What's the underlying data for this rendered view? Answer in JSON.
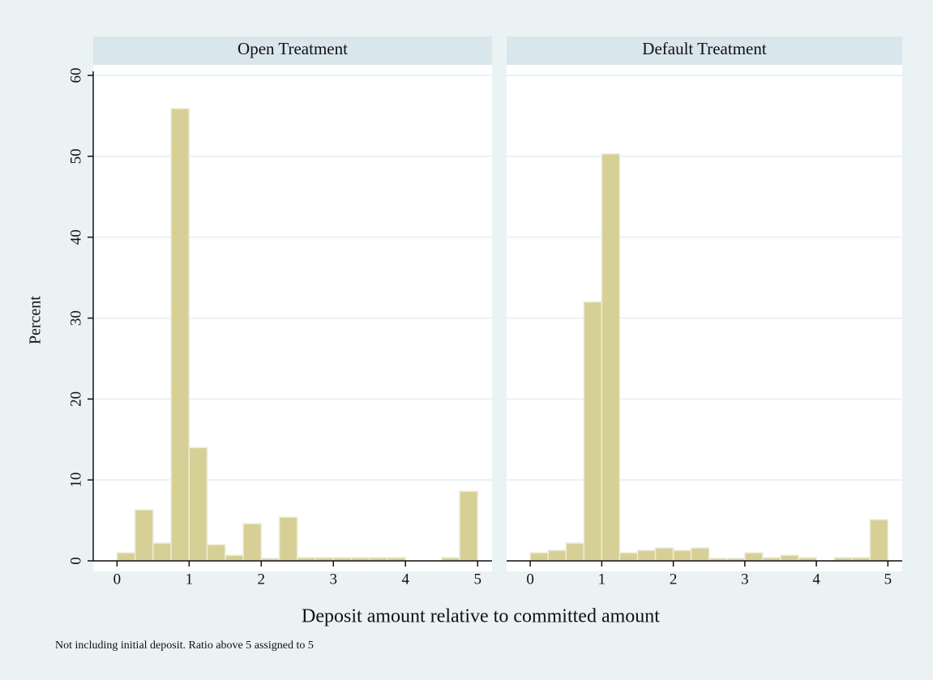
{
  "chart_data": [
    {
      "type": "histogram",
      "title": "Open Treatment",
      "color": "#d6d096",
      "bins": [
        0,
        0.25,
        0.5,
        0.75,
        1,
        1.25,
        1.5,
        1.75,
        2,
        2.25,
        2.5,
        2.75,
        3,
        3.25,
        3.5,
        3.75,
        4,
        4.25,
        4.5,
        4.75,
        5
      ],
      "values": [
        1,
        6.3,
        2.2,
        55.9,
        14,
        2,
        0.7,
        4.6,
        0.3,
        5.4,
        0.4,
        0.4,
        0.4,
        0.4,
        0.4,
        0.4,
        0,
        0,
        0.4,
        8.6
      ],
      "xlim": [
        -0.33,
        5.2
      ],
      "ylim": [
        0,
        60
      ],
      "xticks": [
        0,
        1,
        2,
        3,
        4,
        5
      ],
      "yticks": [
        0,
        10,
        20,
        30,
        40,
        50,
        60
      ],
      "grid": true
    },
    {
      "type": "histogram",
      "title": "Default Treatment",
      "color": "#d6d096",
      "bins": [
        0,
        0.25,
        0.5,
        0.75,
        1,
        1.25,
        1.5,
        1.75,
        2,
        2.25,
        2.5,
        2.75,
        3,
        3.25,
        3.5,
        3.75,
        4,
        4.25,
        4.5,
        4.75,
        5
      ],
      "values": [
        1,
        1.3,
        2.2,
        32,
        50.3,
        1,
        1.3,
        1.6,
        1.3,
        1.6,
        0.3,
        0.3,
        1,
        0.4,
        0.7,
        0.4,
        0,
        0.4,
        0.4,
        5.1
      ],
      "xlim": [
        -0.33,
        5.2
      ],
      "ylim": [
        0,
        60
      ],
      "xticks": [
        0,
        1,
        2,
        3,
        4,
        5
      ],
      "yticks": [
        0,
        10,
        20,
        30,
        40,
        50,
        60
      ],
      "grid": true
    }
  ],
  "y_label": "Percent",
  "x_label": "Deposit amount relative to committed amount",
  "note": "Not including initial deposit. Ratio above 5 assigned to 5"
}
